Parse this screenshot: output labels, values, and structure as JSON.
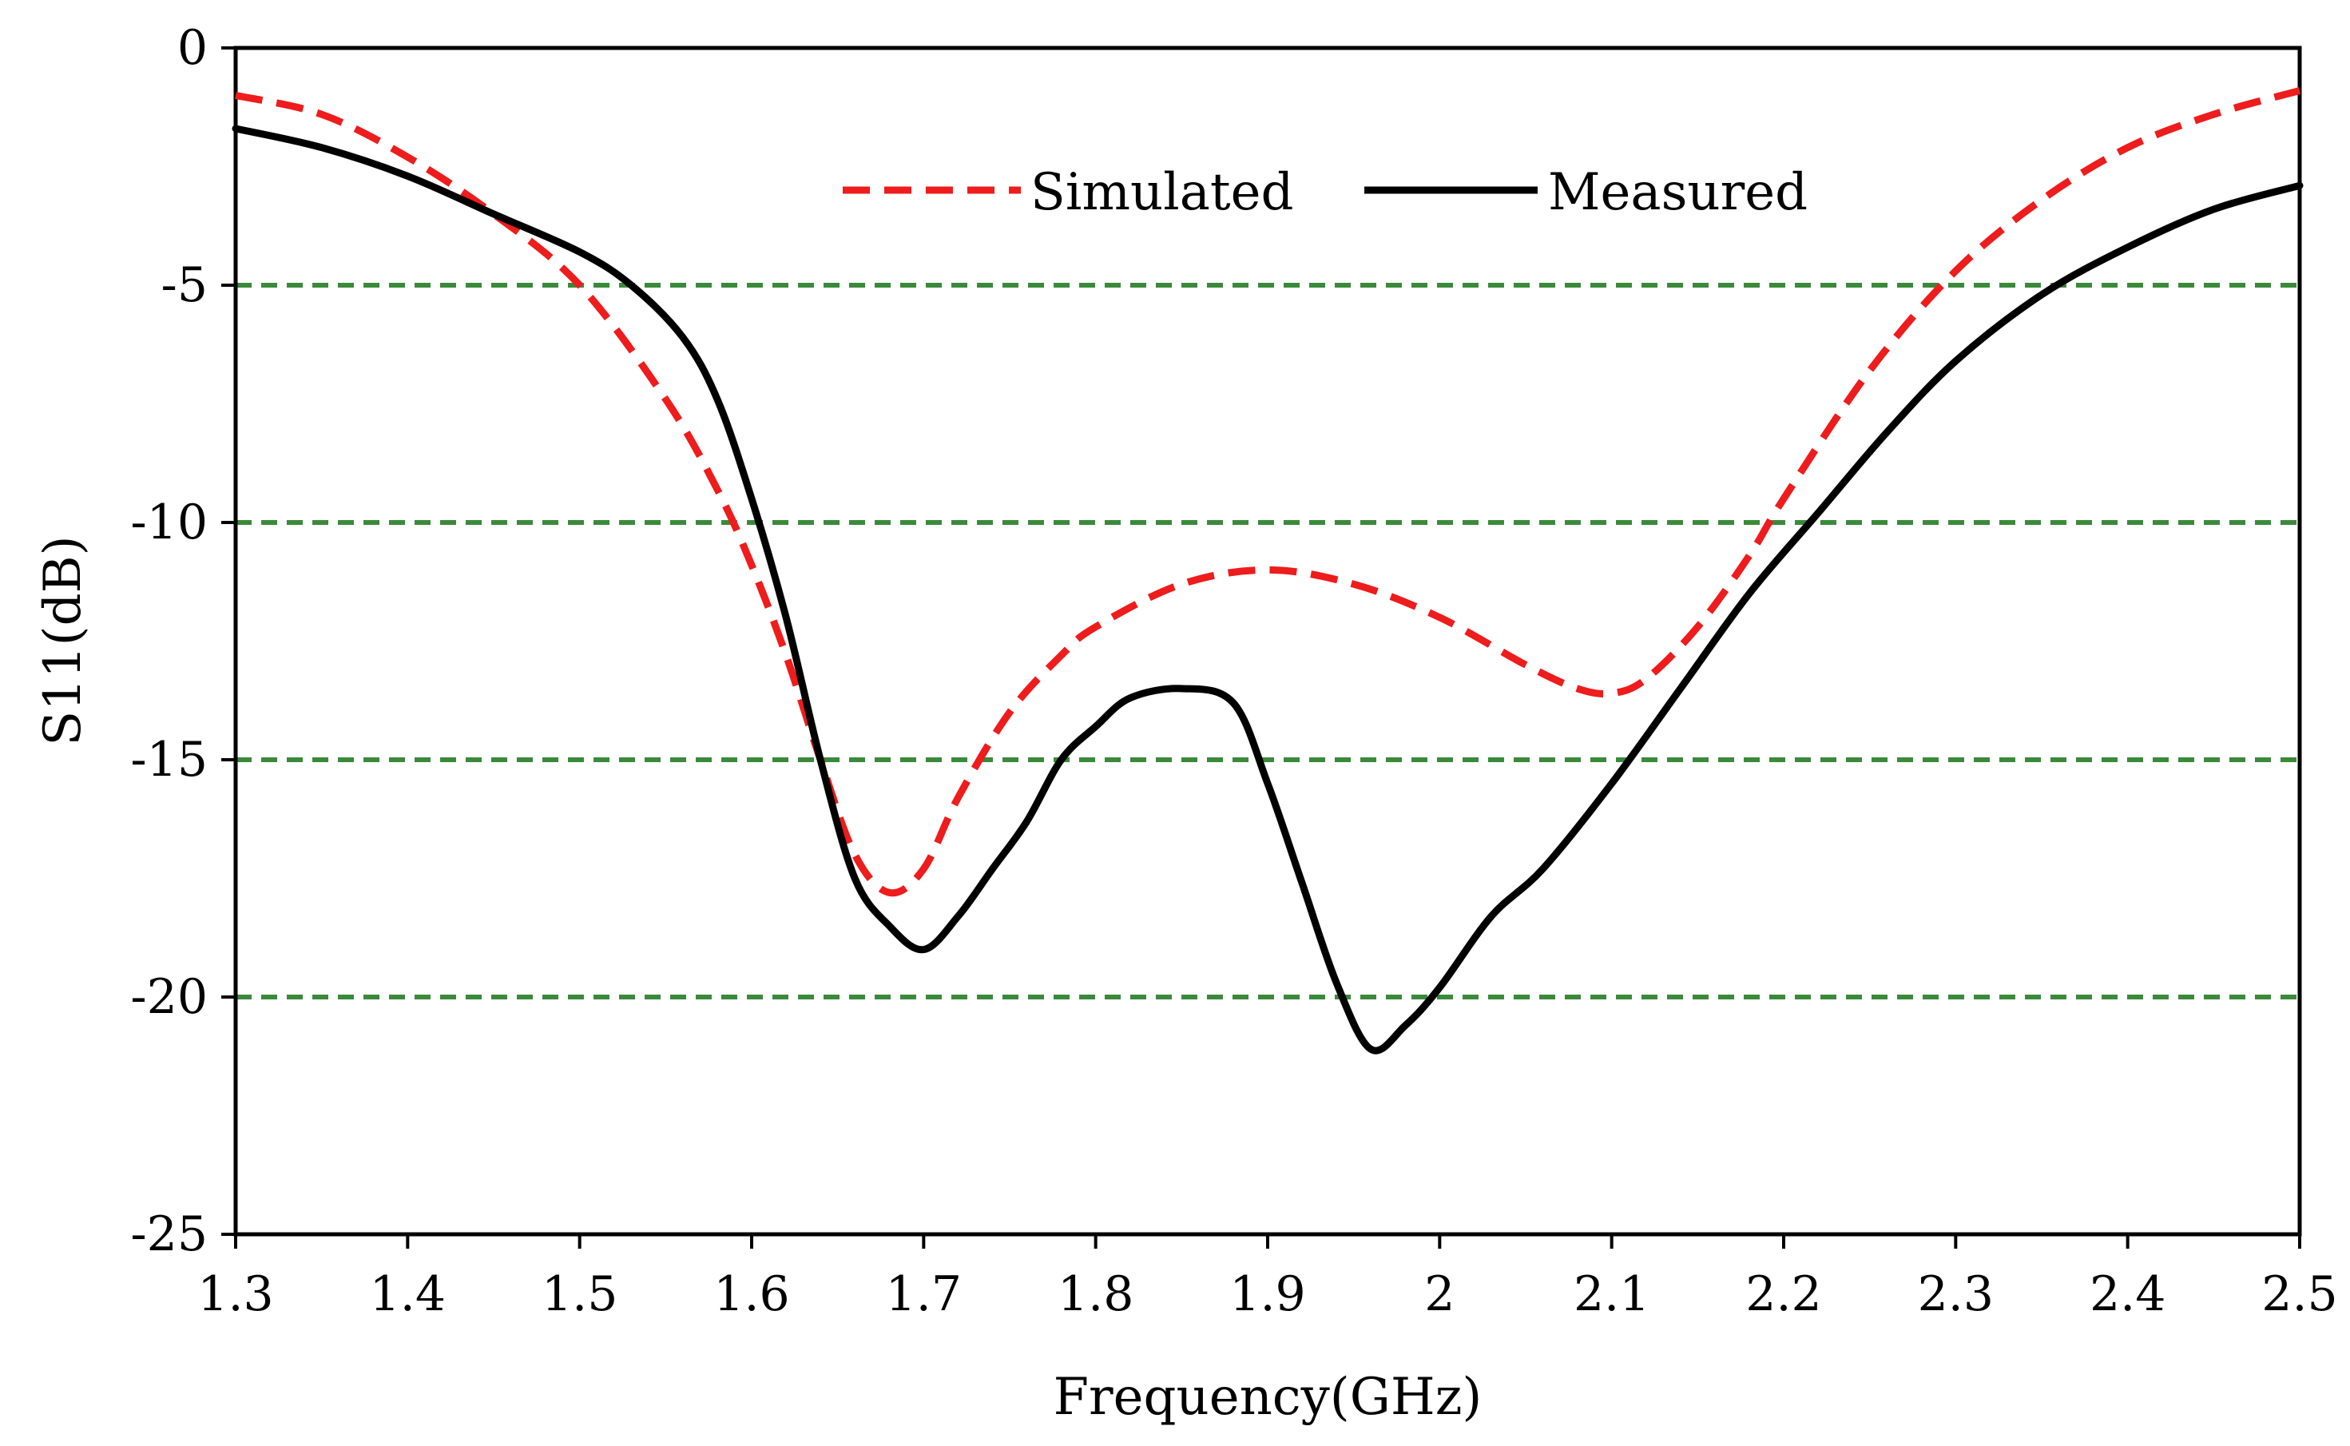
{
  "chart_data": {
    "type": "line",
    "title": "",
    "xlabel": "Frequency(GHz)",
    "ylabel": "S11(dB)",
    "xlim": [
      1.3,
      2.5
    ],
    "ylim": [
      -25,
      0
    ],
    "x_ticks": [
      1.3,
      1.4,
      1.5,
      1.6,
      1.7,
      1.8,
      1.9,
      2.0,
      2.1,
      2.2,
      2.3,
      2.4,
      2.5
    ],
    "x_tick_labels": [
      "1.3",
      "1.4",
      "1.5",
      "1.6",
      "1.7",
      "1.8",
      "1.9",
      "2",
      "2.1",
      "2.2",
      "2.3",
      "2.4",
      "2.5"
    ],
    "y_ticks": [
      0,
      -5,
      -10,
      -15,
      -20,
      -25
    ],
    "y_tick_labels": [
      "0",
      "-5",
      "-10",
      "-15",
      "-20",
      "-25"
    ],
    "gridlines_y": [
      -5,
      -10,
      -15,
      -20
    ],
    "grid_color": "#3a8a3a",
    "legend_position": "top-center",
    "series": [
      {
        "name": "Simulated",
        "color": "#ee1c1c",
        "style": "dashed",
        "x": [
          1.3,
          1.35,
          1.4,
          1.45,
          1.5,
          1.55,
          1.58,
          1.6,
          1.62,
          1.64,
          1.66,
          1.68,
          1.7,
          1.72,
          1.75,
          1.78,
          1.8,
          1.85,
          1.9,
          1.95,
          2.0,
          2.05,
          2.08,
          2.1,
          2.12,
          2.15,
          2.18,
          2.2,
          2.25,
          2.3,
          2.35,
          2.4,
          2.45,
          2.5
        ],
        "y": [
          -1.0,
          -1.4,
          -2.3,
          -3.5,
          -5.0,
          -7.4,
          -9.3,
          -10.9,
          -12.8,
          -15.0,
          -17.0,
          -17.8,
          -17.3,
          -15.8,
          -14.0,
          -12.8,
          -12.2,
          -11.3,
          -11.0,
          -11.3,
          -12.0,
          -13.0,
          -13.5,
          -13.6,
          -13.3,
          -12.2,
          -10.7,
          -9.5,
          -6.8,
          -4.7,
          -3.2,
          -2.1,
          -1.4,
          -0.9
        ]
      },
      {
        "name": "Measured",
        "color": "#000000",
        "style": "solid",
        "x": [
          1.3,
          1.35,
          1.4,
          1.45,
          1.5,
          1.53,
          1.56,
          1.58,
          1.6,
          1.62,
          1.64,
          1.66,
          1.68,
          1.7,
          1.72,
          1.74,
          1.76,
          1.78,
          1.8,
          1.82,
          1.85,
          1.88,
          1.9,
          1.92,
          1.94,
          1.96,
          1.98,
          2.0,
          2.03,
          2.06,
          2.1,
          2.14,
          2.18,
          2.22,
          2.26,
          2.3,
          2.35,
          2.4,
          2.45,
          2.5
        ],
        "y": [
          -1.7,
          -2.1,
          -2.7,
          -3.5,
          -4.3,
          -5.0,
          -6.1,
          -7.4,
          -9.5,
          -12.0,
          -15.0,
          -17.5,
          -18.5,
          -19.0,
          -18.3,
          -17.3,
          -16.3,
          -15.0,
          -14.3,
          -13.7,
          -13.5,
          -13.8,
          -15.5,
          -17.6,
          -19.7,
          -21.1,
          -20.6,
          -19.8,
          -18.3,
          -17.3,
          -15.5,
          -13.5,
          -11.5,
          -9.8,
          -8.1,
          -6.6,
          -5.2,
          -4.2,
          -3.4,
          -2.9
        ]
      }
    ]
  }
}
